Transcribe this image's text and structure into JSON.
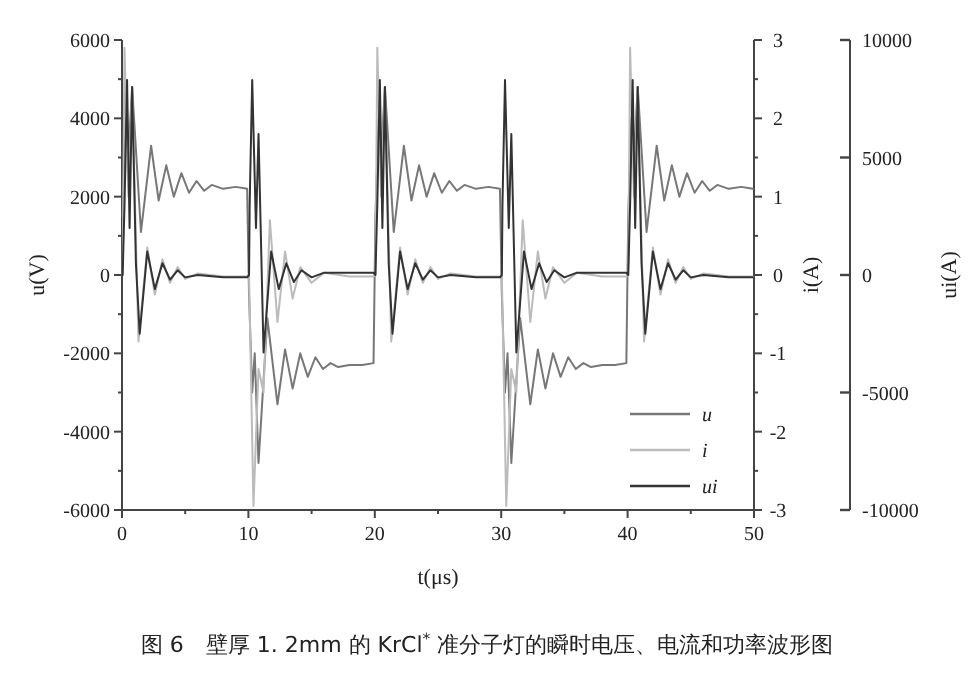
{
  "chart_data": {
    "type": "line",
    "xlabel": "t(μs)",
    "ylabel": "u(V)",
    "y2label": "i(A)",
    "y3label": "ui(A)",
    "legend": "bottom right",
    "grid": false,
    "annotations": [
      "图 6　壁厚 1. 2mm 的 KrCl$^{*}$ 准分子灯的瞬时电压、电流和功率波形图"
    ],
    "xlim": [
      0,
      50
    ],
    "xticks": [
      0,
      {
        "value": 5,
        "label": null
      },
      10,
      {
        "value": 15,
        "label": null
      },
      20,
      {
        "value": 25,
        "label": null
      },
      30,
      {
        "value": 35,
        "label": null
      },
      40,
      {
        "value": 45,
        "label": null
      },
      50
    ],
    "ylim": [
      -6000,
      6000
    ],
    "yticks": [
      -6000,
      {
        "value": -5000,
        "label": null
      },
      -4000,
      {
        "value": -3000,
        "label": null
      },
      -2000,
      {
        "value": -1000,
        "label": null
      },
      0,
      {
        "value": 1000,
        "label": null
      },
      2000,
      {
        "value": 3000,
        "label": null
      },
      4000,
      {
        "value": 5000,
        "label": null
      },
      6000
    ],
    "y2lim": [
      -3,
      3
    ],
    "y2ticks": [
      -3,
      {
        "value": -2.5,
        "label": null
      },
      -2,
      {
        "value": -1.5,
        "label": null
      },
      -1,
      {
        "value": -0.5,
        "label": null
      },
      0,
      {
        "value": 0.5,
        "label": null
      },
      1,
      {
        "value": 1.5,
        "label": null
      },
      2,
      {
        "value": 2.5,
        "label": null
      },
      3
    ],
    "y3lim": [
      -10000,
      10000
    ],
    "y3ticks": [
      -10000,
      -5000,
      0,
      5000,
      10000
    ],
    "series": [
      {
        "name": "u",
        "color": "#777777",
        "axis": "y",
        "x": [
          0.05,
          0.3,
          0.5,
          0.8,
          1.5,
          2.3,
          2.9,
          3.5,
          4.1,
          4.7,
          5.3,
          5.9,
          6.5,
          7.1,
          8,
          9,
          9.9,
          10.05,
          10.3,
          10.5,
          10.8,
          11.5,
          12.3,
          12.9,
          13.5,
          14.1,
          14.7,
          15.3,
          15.9,
          16.5,
          17.1,
          18,
          19,
          19.9,
          20.05,
          20.3,
          20.5,
          20.8,
          21.5,
          22.3,
          22.9,
          23.5,
          24.1,
          24.7,
          25.3,
          25.9,
          26.5,
          27.1,
          28,
          29,
          29.9,
          30.05,
          30.3,
          30.5,
          30.8,
          31.5,
          32.3,
          32.9,
          33.5,
          34.1,
          34.7,
          35.3,
          35.9,
          36.5,
          37.1,
          38,
          39,
          39.9,
          40.05,
          40.3,
          40.5,
          40.8,
          41.5,
          42.3,
          42.9,
          43.5,
          44.1,
          44.7,
          45.3,
          45.9,
          46.5,
          47.1,
          48,
          49,
          49.9
        ],
        "values": [
          1500,
          4000,
          3000,
          4800,
          1100,
          3300,
          1900,
          2800,
          2000,
          2600,
          2100,
          2400,
          2150,
          2300,
          2200,
          2250,
          2200,
          -500,
          -3000,
          -2000,
          -4800,
          -1100,
          -3300,
          -1900,
          -2900,
          -2000,
          -2600,
          -2100,
          -2400,
          -2250,
          -2350,
          -2300,
          -2300,
          -2250,
          1500,
          4000,
          3000,
          4800,
          1100,
          3300,
          1900,
          2800,
          2000,
          2600,
          2100,
          2400,
          2150,
          2300,
          2200,
          2250,
          2200,
          -500,
          -3000,
          -2000,
          -4800,
          -1100,
          -3300,
          -1900,
          -2900,
          -2000,
          -2600,
          -2100,
          -2400,
          -2250,
          -2350,
          -2300,
          -2300,
          -2250,
          1500,
          4000,
          3000,
          4800,
          1100,
          3300,
          1900,
          2800,
          2000,
          2600,
          2100,
          2400,
          2150,
          2300,
          2200,
          2250,
          2200
        ]
      },
      {
        "name": "i",
        "color": "#bbbbbb",
        "axis": "y2",
        "x": [
          0.05,
          0.2,
          0.5,
          0.8,
          1.3,
          2.0,
          2.6,
          3.2,
          3.8,
          4.4,
          5,
          6,
          8,
          9.9,
          10.05,
          10.4,
          10.8,
          11.2,
          11.7,
          12.3,
          12.9,
          13.5,
          14.1,
          15,
          16,
          18,
          19.9,
          20.05,
          20.2,
          20.5,
          20.8,
          21.3,
          22.0,
          22.6,
          23.2,
          23.8,
          24.4,
          25,
          26,
          28,
          29.9,
          30.05,
          30.4,
          30.8,
          31.2,
          31.7,
          32.3,
          32.9,
          33.5,
          34.1,
          35,
          36,
          38,
          39.9,
          40.05,
          40.2,
          40.5,
          40.8,
          41.3,
          42.0,
          42.6,
          43.2,
          43.8,
          44.4,
          45,
          46,
          48,
          49.9
        ],
        "values": [
          0,
          2.9,
          1.0,
          2.4,
          -0.85,
          0.35,
          -0.25,
          0.2,
          -0.1,
          0.1,
          -0.05,
          0.02,
          -0.02,
          -0.02,
          0,
          -2.95,
          -1.2,
          -1.5,
          0.7,
          -0.6,
          0.3,
          -0.3,
          0.1,
          -0.1,
          0.03,
          -0.02,
          -0.02,
          0,
          2.9,
          1.0,
          2.4,
          -0.85,
          0.35,
          -0.25,
          0.2,
          -0.1,
          0.1,
          -0.05,
          0.02,
          -0.02,
          -0.02,
          0,
          -2.95,
          -1.2,
          -1.5,
          0.7,
          -0.6,
          0.3,
          -0.3,
          0.1,
          -0.1,
          0.03,
          -0.02,
          -0.02,
          0,
          2.9,
          1.0,
          2.4,
          -0.85,
          0.35,
          -0.25,
          0.2,
          -0.1,
          0.1,
          -0.05,
          0.02,
          -0.02,
          -0.02
        ]
      },
      {
        "name": "ui",
        "color": "#333333",
        "axis": "y3",
        "x": [
          0.05,
          0.2,
          0.4,
          0.6,
          0.8,
          1.1,
          1.4,
          2.0,
          2.6,
          3.2,
          3.8,
          4.4,
          5,
          6,
          8,
          9.9,
          10.05,
          10.1,
          10.3,
          10.6,
          10.8,
          11.2,
          11.8,
          12.4,
          13,
          13.6,
          14.2,
          15,
          16,
          18,
          19.9,
          20.05,
          20.2,
          20.4,
          20.6,
          20.8,
          21.1,
          21.4,
          22.0,
          22.6,
          23.2,
          23.8,
          24.4,
          25,
          26,
          28,
          29.9,
          30.05,
          30.1,
          30.3,
          30.6,
          30.8,
          31.2,
          31.8,
          32.4,
          33,
          33.6,
          34.2,
          35,
          36,
          38,
          39.9,
          40.05,
          40.2,
          40.4,
          40.6,
          40.8,
          41.1,
          41.4,
          42.0,
          42.6,
          43.2,
          43.8,
          44.4,
          45,
          46,
          48,
          49.9
        ],
        "values": [
          0,
          3000,
          8300,
          2000,
          8000,
          500,
          -2500,
          1000,
          -600,
          500,
          -200,
          200,
          -100,
          0,
          -100,
          -100,
          0,
          3000,
          8300,
          2000,
          6000,
          -3300,
          1000,
          -600,
          500,
          -300,
          200,
          -100,
          100,
          100,
          100,
          0,
          3000,
          8300,
          2000,
          8000,
          500,
          -2500,
          1000,
          -600,
          500,
          -200,
          200,
          -100,
          0,
          -100,
          -100,
          0,
          3000,
          8300,
          2000,
          6000,
          -3300,
          1000,
          -600,
          500,
          -300,
          200,
          -100,
          100,
          100,
          100,
          0,
          3000,
          8300,
          2000,
          8000,
          500,
          -2500,
          1000,
          -600,
          500,
          -200,
          200,
          -100,
          0,
          -100,
          -100
        ]
      }
    ]
  }
}
